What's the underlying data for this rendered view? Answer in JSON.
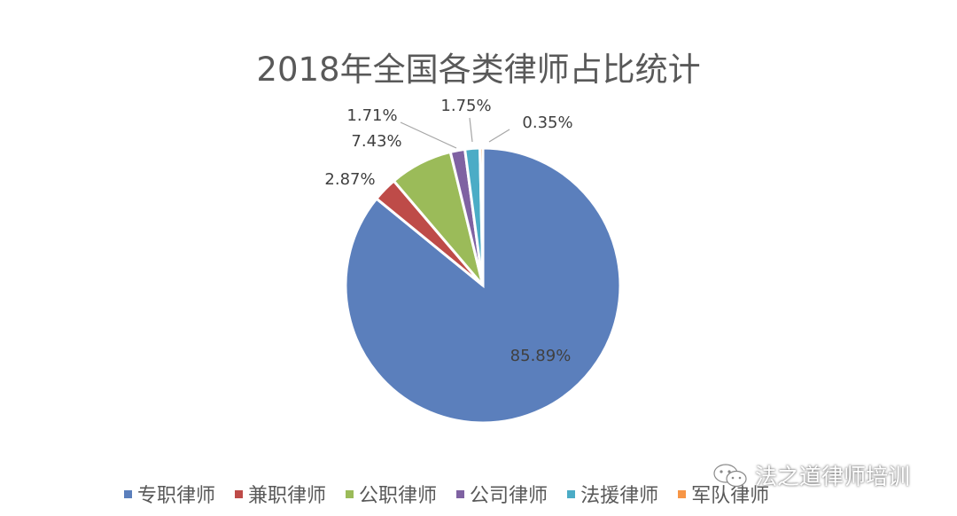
{
  "chart_data": {
    "type": "pie",
    "title": "2018年全国各类律师占比统计",
    "categories": [
      "专职律师",
      "兼职律师",
      "公职律师",
      "公司律师",
      "法援律师",
      "军队律师"
    ],
    "values": [
      85.89,
      2.87,
      7.43,
      1.71,
      1.75,
      0.35
    ],
    "value_labels": [
      "85.89%",
      "2.87%",
      "7.43%",
      "1.71%",
      "1.75%",
      "0.35%"
    ],
    "colors": [
      "#5B7FBC",
      "#BE4B48",
      "#9BBB59",
      "#7F62A2",
      "#4BACC6",
      "#F79646"
    ],
    "unit": "%",
    "legend_position": "bottom"
  },
  "watermark": {
    "text": "法之道律师培训",
    "icon": "wechat-icon"
  }
}
